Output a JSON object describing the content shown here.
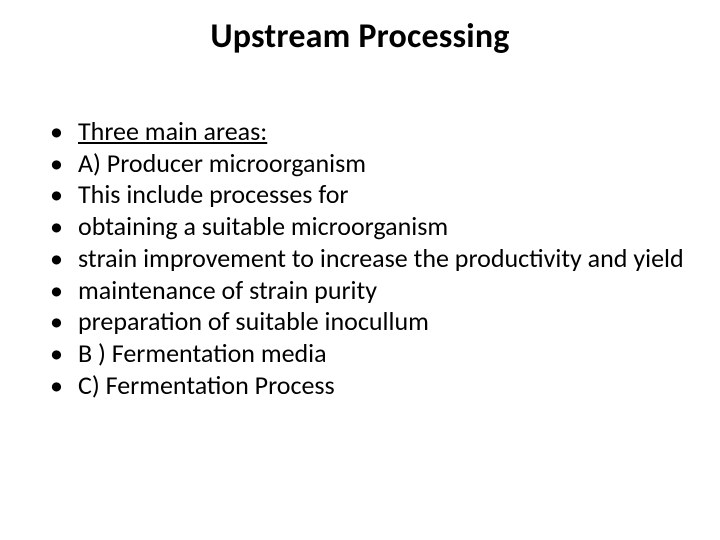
{
  "slide": {
    "title": "Upstream Processing",
    "bullets": [
      {
        "text": "Three main areas: ",
        "underline": true
      },
      {
        "text": "A) Producer microorganism"
      },
      {
        "text": "This include processes for"
      },
      {
        "text": "obtaining a suitable microorganism"
      },
      {
        "text": "strain improvement to increase the productivity and yield"
      },
      {
        "text": " maintenance of strain purity"
      },
      {
        "text": "preparation of suitable inocullum"
      },
      {
        "text": "B ) Fermentation media"
      },
      {
        "text": "C) Fermentation Process"
      }
    ]
  },
  "style": {
    "background_color": "#ffffff",
    "text_color": "#000000",
    "title_fontsize": 34,
    "title_fontweight": 700,
    "body_fontsize": 26,
    "body_lineheight": 1.22,
    "bullet_char": "•",
    "font_family": "Calibri"
  }
}
